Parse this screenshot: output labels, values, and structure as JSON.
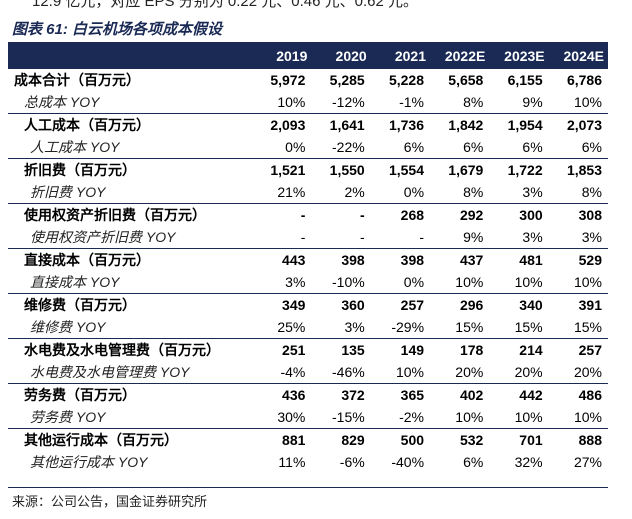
{
  "cut_top_text": "12.9 亿元，对应 EPS 分别为 0.22 元、0.46 元、0.62 元。",
  "title": "图表 61:  白云机场各项成本假设",
  "columns": [
    "",
    "2019",
    "2020",
    "2021",
    "2022E",
    "2023E",
    "2024E"
  ],
  "rows": [
    {
      "label": "成本合计（百万元）",
      "type": "main",
      "values": [
        "5,972",
        "5,285",
        "5,228",
        "5,658",
        "6,155",
        "6,786"
      ]
    },
    {
      "label": "总成本 YOY",
      "type": "yoy",
      "values": [
        "10%",
        "-12%",
        "-1%",
        "8%",
        "9%",
        "10%"
      ]
    },
    {
      "label": "人工成本（百万元）",
      "type": "main",
      "values": [
        "2,093",
        "1,641",
        "1,736",
        "1,842",
        "1,954",
        "2,073"
      ]
    },
    {
      "label": "人工成本 YOY",
      "type": "yoy",
      "values": [
        "0%",
        "-22%",
        "6%",
        "6%",
        "6%",
        "6%"
      ]
    },
    {
      "label": "折旧费（百万元）",
      "type": "main",
      "values": [
        "1,521",
        "1,550",
        "1,554",
        "1,679",
        "1,722",
        "1,853"
      ]
    },
    {
      "label": "折旧费 YOY",
      "type": "yoy",
      "values": [
        "21%",
        "2%",
        "0%",
        "8%",
        "3%",
        "8%"
      ]
    },
    {
      "label": "使用权资产折旧费（百万元）",
      "type": "main",
      "values": [
        "-",
        "-",
        "268",
        "292",
        "300",
        "308"
      ]
    },
    {
      "label": "使用权资产折旧费 YOY",
      "type": "yoy",
      "values": [
        "-",
        "-",
        "-",
        "9%",
        "3%",
        "3%"
      ]
    },
    {
      "label": "直接成本（百万元）",
      "type": "main",
      "values": [
        "443",
        "398",
        "398",
        "437",
        "481",
        "529"
      ]
    },
    {
      "label": "直接成本 YOY",
      "type": "yoy",
      "values": [
        "3%",
        "-10%",
        "0%",
        "10%",
        "10%",
        "10%"
      ]
    },
    {
      "label": "维修费（百万元）",
      "type": "main",
      "values": [
        "349",
        "360",
        "257",
        "296",
        "340",
        "391"
      ]
    },
    {
      "label": "维修费 YOY",
      "type": "yoy",
      "values": [
        "25%",
        "3%",
        "-29%",
        "15%",
        "15%",
        "15%"
      ]
    },
    {
      "label": "水电费及水电管理费（百万元）",
      "type": "main",
      "values": [
        "251",
        "135",
        "149",
        "178",
        "214",
        "257"
      ]
    },
    {
      "label": "水电费及水电管理费 YOY",
      "type": "yoy",
      "values": [
        "-4%",
        "-46%",
        "10%",
        "20%",
        "20%",
        "20%"
      ]
    },
    {
      "label": "劳务费（百万元）",
      "type": "main",
      "values": [
        "436",
        "372",
        "365",
        "402",
        "442",
        "486"
      ]
    },
    {
      "label": "劳务费 YOY",
      "type": "yoy",
      "values": [
        "30%",
        "-15%",
        "-2%",
        "10%",
        "10%",
        "10%"
      ]
    },
    {
      "label": "其他运行成本（百万元）",
      "type": "main",
      "values": [
        "881",
        "829",
        "500",
        "532",
        "701",
        "888"
      ]
    },
    {
      "label": "其他运行成本 YOY",
      "type": "yoy",
      "values": [
        "11%",
        "-6%",
        "-40%",
        "6%",
        "32%",
        "27%"
      ]
    }
  ],
  "source": "来源：公司公告，国金证券研究所"
}
